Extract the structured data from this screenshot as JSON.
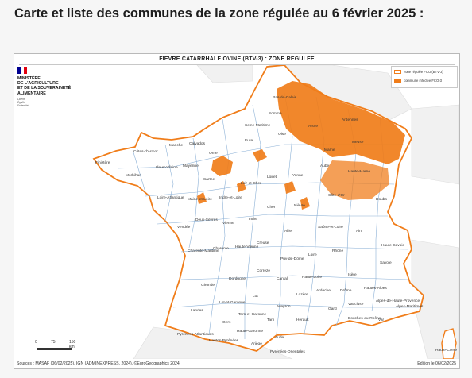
{
  "heading": "Carte et liste des communes de la zone régulée au 6 février 2025 :",
  "map": {
    "title": "FIEVRE CATARRHALE OVINE (BTV-3) : ZONE REGULEE",
    "ministry": [
      "MINISTÈRE",
      "DE L'AGRICULTURE",
      "ET DE LA SOUVERAINETÉ",
      "ALIMENTAIRE"
    ],
    "motto": [
      "Liberté",
      "Égalité",
      "Fraternité"
    ],
    "legend": {
      "items": [
        {
          "label": "zone régulée FCO (BTV-3)",
          "style": "outline",
          "color": "#f07d1a"
        },
        {
          "label": "commune infectée FCO-3",
          "style": "fill",
          "color": "#f07d1a"
        }
      ]
    },
    "scale": {
      "zero": "0",
      "mid": "75",
      "end": "150 km"
    },
    "sources": "Sources : MASAF (06/02/2025), IGN (ADMINEXPRESS, 2024), ©EuroGeographics 2024",
    "edition": "Edition le 06/02/2025",
    "colors": {
      "accent": "#f07d1a",
      "boundary": "#8bb0d6",
      "land": "#ffffff",
      "sea": "#ffffff",
      "neighbours": "#f2f2f2"
    },
    "departments": [
      "Pas-de-Calais",
      "Somme",
      "Seine-Maritime",
      "Calvados",
      "Manche",
      "Orne",
      "Eure",
      "Oise",
      "Aisne",
      "Ardennes",
      "Marne",
      "Meuse",
      "Finistère",
      "Côtes-d'Armor",
      "Morbihan",
      "Ille-et-Vilaine",
      "Mayenne",
      "Sarthe",
      "Loire-Atlantique",
      "Maine-et-Loire",
      "Indre-et-Loire",
      "Loir-et-Cher",
      "Loiret",
      "Yonne",
      "Aube",
      "Haute-Marne",
      "Côte-d'Or",
      "Doubs",
      "Cher",
      "Nièvre",
      "Vendée",
      "Deux-Sèvres",
      "Vienne",
      "Indre",
      "Allier",
      "Saône-et-Loire",
      "Ain",
      "Charente-Maritime",
      "Charente",
      "Haute-Vienne",
      "Creuse",
      "Puy-de-Dôme",
      "Loire",
      "Rhône",
      "Savoie",
      "Haute-Savoie",
      "Gironde",
      "Dordogne",
      "Corrèze",
      "Cantal",
      "Haute-Loire",
      "Isère",
      "Lot",
      "Lozère",
      "Ardèche",
      "Drôme",
      "Hautes-Alpes",
      "Landes",
      "Lot-et-Garonne",
      "Tarn-et-Garonne",
      "Aveyron",
      "Gard",
      "Vaucluse",
      "Alpes-de-Haute-Provence",
      "Alpes-Maritimes",
      "Gers",
      "Tarn",
      "Hérault",
      "Bouches-du-Rhône",
      "Var",
      "Pyrénées-Atlantiques",
      "Hautes-Pyrénées",
      "Ariège",
      "Aude",
      "Pyrénées-Orientales",
      "Haute-Garonne",
      "Haute-Corse"
    ],
    "infected_regions": [
      "north-east quarter",
      "Orne / Eure area",
      "Brittany-Normandy border patches"
    ]
  }
}
